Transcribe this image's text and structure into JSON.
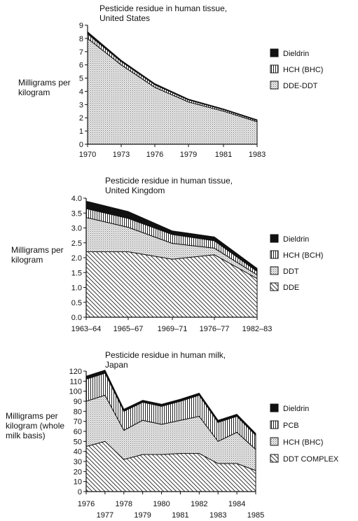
{
  "chart_data": [
    {
      "type": "area",
      "stacked": true,
      "title": [
        "Pesticide residue in human tissue,",
        "United States"
      ],
      "ylabel": [
        "Milligrams per",
        "kilogram"
      ],
      "ylim": [
        0,
        9
      ],
      "yticks": [
        "0",
        "1",
        "2",
        "3",
        "4",
        "5",
        "6",
        "7",
        "8",
        "9"
      ],
      "x": [
        1970,
        1973,
        1976,
        1979,
        1981,
        1983
      ],
      "xtick_labels": [
        "1970",
        "1973",
        "1976",
        "1979",
        "1981",
        "1983"
      ],
      "series": [
        {
          "name": "DDE-DDT",
          "pattern": "dots",
          "values": [
            8.0,
            6.0,
            4.3,
            3.2,
            2.5,
            1.7
          ]
        },
        {
          "name": "HCH (BHC)",
          "pattern": "vlines",
          "values": [
            0.35,
            0.25,
            0.2,
            0.15,
            0.12,
            0.1
          ]
        },
        {
          "name": "Dieldrin",
          "pattern": "solid",
          "values": [
            0.15,
            0.1,
            0.08,
            0.06,
            0.05,
            0.05
          ]
        }
      ],
      "legend_order": [
        "Dieldrin",
        "HCH (BHC)",
        "DDE-DDT"
      ],
      "legend_position": "right"
    },
    {
      "type": "area",
      "stacked": true,
      "title": [
        "Pesticide residue in human tissue,",
        "United Kingdom"
      ],
      "ylabel": [
        "Milligrams per",
        "kilogram"
      ],
      "ylim": [
        0,
        4
      ],
      "yticks": [
        "0.0",
        "0.5",
        "1.0",
        "1.5",
        "2.0",
        "2.5",
        "3.0",
        "3.5",
        "4.0"
      ],
      "x": [
        "1963–64",
        "1965–67",
        "1969–71",
        "1976–77",
        "1982–83"
      ],
      "xtick_labels": [
        "1963–64",
        "1965–67",
        "1969–71",
        "1976–77",
        "1982–83"
      ],
      "series": [
        {
          "name": "DDE",
          "pattern": "diag",
          "values": [
            2.2,
            2.2,
            1.95,
            2.1,
            1.3
          ]
        },
        {
          "name": "DDT",
          "pattern": "dots",
          "values": [
            1.15,
            0.82,
            0.53,
            0.22,
            0.12
          ]
        },
        {
          "name": "HCH (BCH)",
          "pattern": "vlines",
          "values": [
            0.3,
            0.3,
            0.3,
            0.25,
            0.12
          ]
        },
        {
          "name": "Dieldrin",
          "pattern": "solid",
          "values": [
            0.25,
            0.23,
            0.12,
            0.13,
            0.1
          ]
        }
      ],
      "legend_order": [
        "Dieldrin",
        "HCH (BCH)",
        "DDT",
        "DDE"
      ],
      "legend_position": "right"
    },
    {
      "type": "area",
      "stacked": true,
      "title": [
        "Pesticide residue in human milk,",
        "Japan"
      ],
      "ylabel": [
        "Milligrams per",
        "kilogram (whole",
        "milk basis)"
      ],
      "ylim": [
        0,
        120
      ],
      "yticks": [
        "0",
        "10",
        "20",
        "30",
        "40",
        "50",
        "60",
        "70",
        "80",
        "90",
        "100",
        "110",
        "120"
      ],
      "x": [
        1976,
        1977,
        1978,
        1979,
        1980,
        1981,
        1982,
        1983,
        1984,
        1985
      ],
      "xtick_labels_top": [
        "1976",
        "1978",
        "1980",
        "1982",
        "1984"
      ],
      "xtick_labels_bottom": [
        "1977",
        "1979",
        "1981",
        "1983",
        "1985"
      ],
      "series": [
        {
          "name": "DDT COMPLEX",
          "pattern": "diag",
          "values": [
            45,
            50,
            32,
            37,
            37,
            38,
            38,
            28,
            28,
            21
          ]
        },
        {
          "name": "HCH (BHC)",
          "pattern": "dots",
          "values": [
            45,
            46,
            29,
            34,
            30,
            33,
            37,
            22,
            31,
            21
          ]
        },
        {
          "name": "PCB",
          "pattern": "vlines",
          "values": [
            22,
            22,
            19,
            18,
            18,
            19,
            21,
            19,
            16,
            14
          ]
        },
        {
          "name": "Dieldrin",
          "pattern": "solid",
          "values": [
            3,
            3,
            2,
            2,
            2,
            2,
            2,
            2,
            2,
            2
          ]
        }
      ],
      "legend_order": [
        "Dieldrin",
        "PCB",
        "HCH (BHC)",
        "DDT COMPLEX"
      ],
      "legend_position": "right"
    }
  ]
}
